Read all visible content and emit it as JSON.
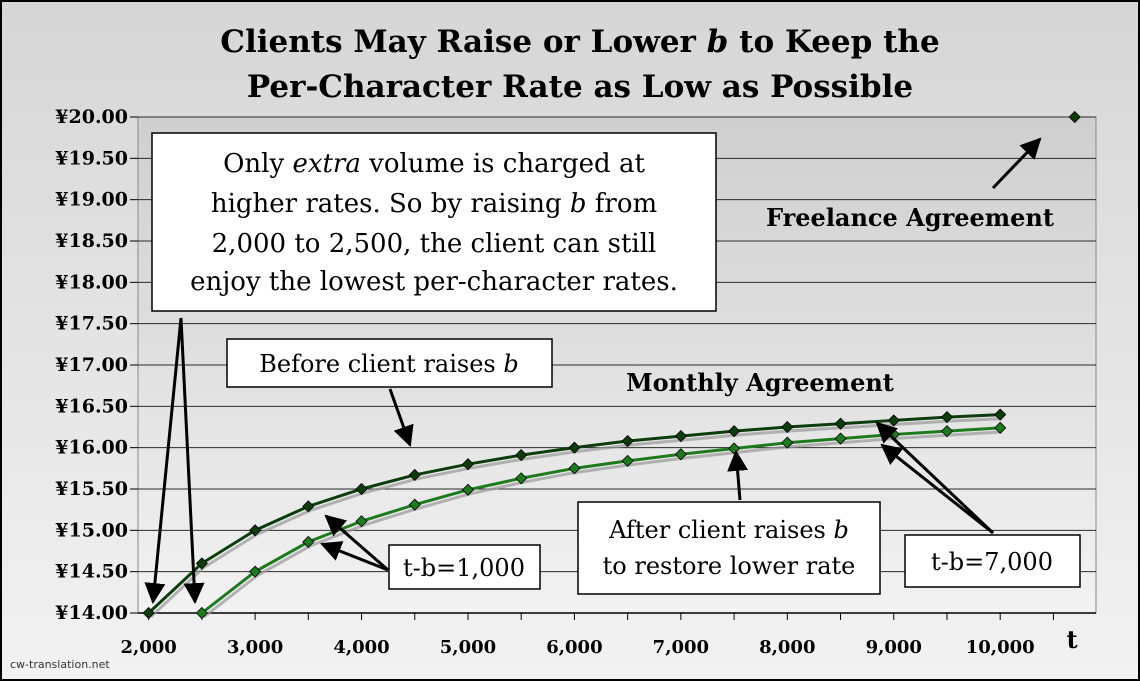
{
  "chart_data": {
    "type": "line",
    "title": [
      "Clients May Raise or Lower ",
      "b",
      " to Keep the",
      "Per-Character Rate as Low as Possible"
    ],
    "x_axis": {
      "label": "t",
      "range": [
        1900,
        10900
      ],
      "ticks": [
        2000,
        3000,
        4000,
        5000,
        6000,
        7000,
        8000,
        9000,
        10000
      ],
      "tick_labels": [
        "2,000",
        "3,000",
        "4,000",
        "5,000",
        "6,000",
        "7,000",
        "8,000",
        "9,000",
        "10,000"
      ]
    },
    "y_axis": {
      "range": [
        14.0,
        20.0
      ],
      "ticks": [
        14.0,
        14.5,
        15.0,
        15.5,
        16.0,
        16.5,
        17.0,
        17.5,
        18.0,
        18.5,
        19.0,
        19.5,
        20.0
      ],
      "tick_labels": [
        "¥14.00",
        "¥14.50",
        "¥15.00",
        "¥15.50",
        "¥16.00",
        "¥16.50",
        "¥17.00",
        "¥17.50",
        "¥18.00",
        "¥18.50",
        "¥19.00",
        "¥19.50",
        "¥20.00"
      ]
    },
    "grid": true,
    "series": [
      {
        "name": "Monthly Agreement",
        "color": "#0d3d0d",
        "x": [
          2000,
          2500,
          3000,
          3500,
          4000,
          4500,
          5000,
          5500,
          6000,
          6500,
          7000,
          7500,
          8000,
          8500,
          9000,
          9500,
          10000
        ],
        "values": [
          14.0,
          14.6,
          15.0,
          15.29,
          15.5,
          15.67,
          15.8,
          15.91,
          16.0,
          16.08,
          16.14,
          16.2,
          16.25,
          16.29,
          16.33,
          16.37,
          16.4
        ]
      },
      {
        "name": "",
        "color": "#1f7a1f",
        "x": [
          2500,
          3000,
          3500,
          4000,
          4500,
          5000,
          5500,
          6000,
          6500,
          7000,
          7500,
          8000,
          8500,
          9000,
          9500,
          10000
        ],
        "values": [
          14.0,
          14.5,
          14.86,
          15.11,
          15.31,
          15.49,
          15.63,
          15.75,
          15.84,
          15.92,
          15.99,
          16.06,
          16.11,
          16.16,
          16.2,
          16.24
        ]
      },
      {
        "name": "Freelance Agreement",
        "color": "#0d3d0d",
        "x": [
          10700
        ],
        "values": [
          20.0
        ]
      }
    ],
    "annotations": {
      "big_note": [
        "Only ",
        "extra",
        " volume is charged at",
        "higher rates. So by raising ",
        "b",
        " from",
        "2,000 to 2,500, the client can still",
        "enjoy the lowest per-character rates."
      ],
      "before": [
        "Before client raises ",
        "b"
      ],
      "after": [
        "After client raises ",
        "b",
        "to restore lower rate"
      ],
      "tb1000": "t-b=1,000",
      "tb7000": "t-b=7,000"
    }
  },
  "credit": "cw-translation.net",
  "colors": {
    "plot_bg_top": "#cfcfcf",
    "plot_bg_bottom": "#f2f2f2",
    "dark_series": "#0d3d0d",
    "light_series": "#1f7a1f"
  }
}
